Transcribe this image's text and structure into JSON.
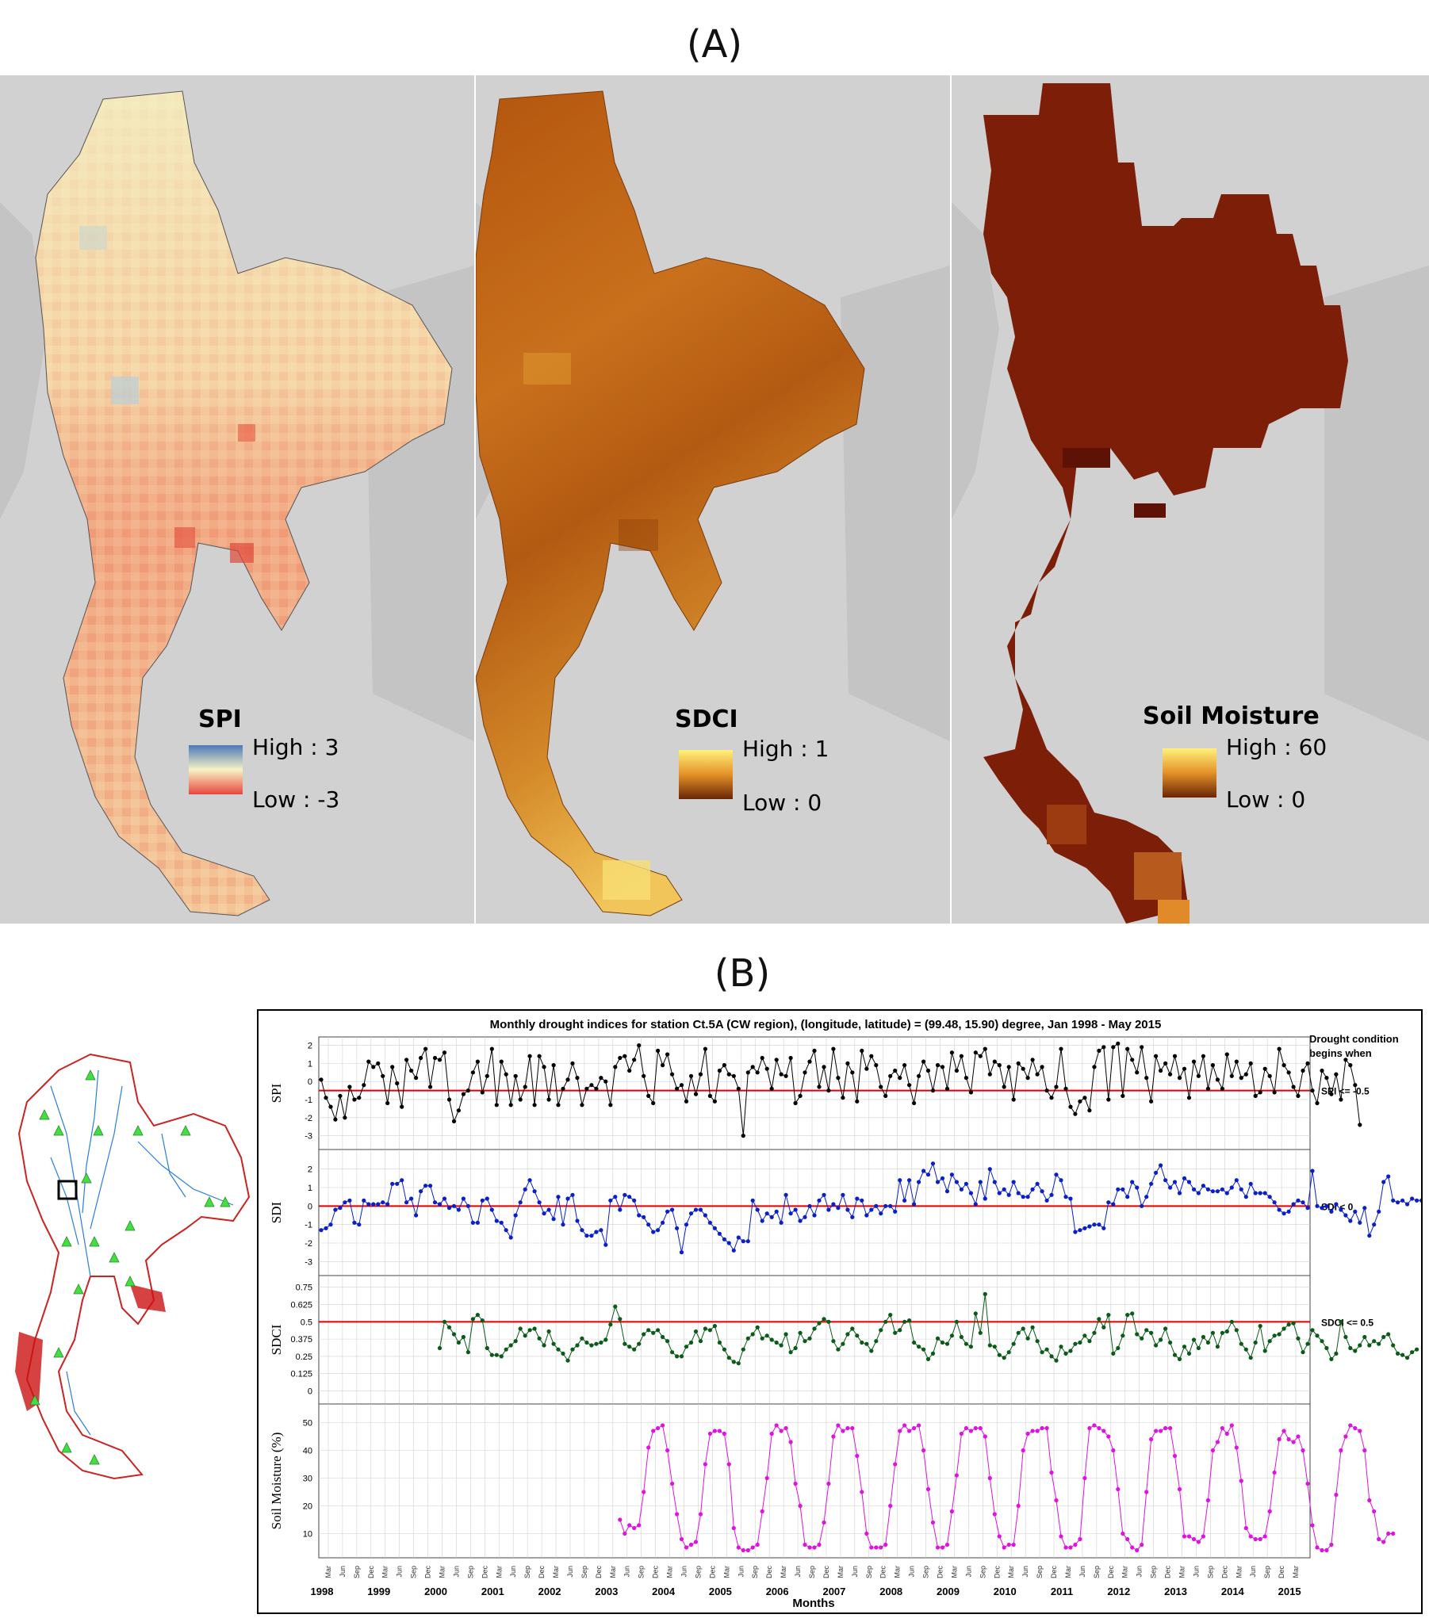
{
  "panel_a_label": "(A)",
  "panel_b_label": "(B)",
  "maps": [
    {
      "legend_title": "SPI",
      "high_label": "High : 3",
      "low_label": "Low : -3",
      "colors": {
        "high": "#4a78b8",
        "mid": "#f6f3c6",
        "low": "#e8463c"
      }
    },
    {
      "legend_title": "SDCI",
      "high_label": "High : 1",
      "low_label": "Low : 0",
      "colors": {
        "high": "#fff27a",
        "mid": "#e39128",
        "low": "#6a2505"
      }
    },
    {
      "legend_title": "Soil Moisture",
      "high_label": "High : 60",
      "low_label": "Low : 0",
      "colors": {
        "high": "#fff27a",
        "mid": "#e39128",
        "low": "#6a2505"
      }
    }
  ],
  "chart_data": {
    "type": "line",
    "title": "Monthly drought indices for station Ct.5A (CW region), (longitude, latitude) = (99.48, 15.90) degree, Jan 1998 - May 2015",
    "xlabel": "Months",
    "x_start": "1998-01",
    "x_end": "2015-05",
    "years": [
      "1998",
      "1999",
      "2000",
      "2001",
      "2002",
      "2003",
      "2004",
      "2005",
      "2006",
      "2007",
      "2008",
      "2009",
      "2010",
      "2011",
      "2012",
      "2013",
      "2014",
      "2015"
    ],
    "month_ticks": [
      "Mar",
      "Jun",
      "Sep",
      "Dec"
    ],
    "side_header": [
      "Drought condition",
      "begins when"
    ],
    "panels": [
      {
        "name": "SPI",
        "ylabel": "SPI",
        "ylim": [
          -3.5,
          2.2
        ],
        "yticks": [
          "2",
          "1",
          "0",
          "-1",
          "-2",
          "-3"
        ],
        "threshold": -0.5,
        "threshold_label": "SPI <= -0.5",
        "color": "#000000",
        "values": [
          0.1,
          -0.9,
          -1.4,
          -2.1,
          -0.8,
          -2.0,
          -0.3,
          -1.0,
          -0.9,
          -0.2,
          1.1,
          0.8,
          1.0,
          0.3,
          -1.2,
          0.8,
          -0.1,
          -1.4,
          1.2,
          0.6,
          0.2,
          1.3,
          1.8,
          -0.3,
          1.3,
          1.2,
          1.6,
          -1.0,
          -2.2,
          -1.6,
          -0.7,
          -0.5,
          0.5,
          1.1,
          -0.6,
          0.3,
          1.8,
          -1.3,
          1.1,
          0.4,
          -1.3,
          0.3,
          -1.0,
          -0.3,
          1.4,
          -1.3,
          1.4,
          0.8,
          -1.0,
          0.9,
          -1.3,
          -0.4,
          0.1,
          1.0,
          0.2,
          -1.3,
          -0.4,
          -0.2,
          -0.4,
          0.2,
          0.0,
          -1.3,
          0.8,
          1.3,
          1.4,
          0.6,
          1.2,
          2.0,
          0.3,
          -0.8,
          -1.2,
          1.7,
          0.9,
          1.5,
          0.4,
          -0.4,
          -0.2,
          -1.1,
          0.3,
          -0.7,
          0.4,
          1.8,
          -0.8,
          -1.1,
          0.6,
          0.9,
          0.4,
          0.3,
          -0.4,
          -3.0,
          0.5,
          0.8,
          0.5,
          1.3,
          0.7,
          -0.4,
          1.2,
          0.4,
          0.3,
          1.3,
          -1.2,
          -0.8,
          0.5,
          1.1,
          1.7,
          -0.3,
          0.8,
          -0.5,
          1.8,
          0.2,
          -0.9,
          1.0,
          0.5,
          -1.1,
          1.7,
          0.7,
          1.4,
          0.9,
          -0.3,
          -0.8,
          0.3,
          0.6,
          0.2,
          0.9,
          -0.2,
          -1.2,
          0.3,
          1.1,
          0.6,
          -0.5,
          0.9,
          0.8,
          -0.4,
          1.6,
          0.6,
          1.4,
          0.2,
          -0.6,
          1.6,
          1.4,
          1.8,
          0.4,
          1.1,
          0.9,
          -0.3,
          0.8,
          -1.0,
          1.0,
          0.7,
          0.2,
          1.2,
          0.4,
          0.8,
          -0.5,
          -0.9,
          -0.3,
          1.8,
          -0.4,
          -1.4,
          -1.8,
          -1.1,
          -0.9,
          -1.6,
          0.8,
          1.7,
          1.9,
          -1.0,
          1.9,
          2.1,
          -0.8,
          1.8,
          1.2,
          0.5,
          1.9,
          0.2,
          -1.1,
          1.4,
          0.6,
          1.0,
          0.4,
          1.4,
          0.2,
          0.7,
          -0.9,
          1.1,
          0.3,
          1.4,
          -0.4,
          0.9,
          0.1,
          -0.4,
          1.5,
          0.3,
          1.1,
          0.2,
          0.4,
          1.0,
          -0.8,
          -0.6,
          0.7,
          0.3,
          -0.6,
          1.8,
          0.9,
          0.5,
          -0.3,
          -0.8,
          0.6,
          1.0,
          -0.5,
          -1.2,
          0.6,
          0.2,
          -0.7,
          0.4,
          -1.0,
          1.2,
          0.9,
          -0.2,
          -2.4
        ]
      },
      {
        "name": "SDI",
        "ylabel": "SDI",
        "ylim": [
          -3.5,
          2.8
        ],
        "yticks": [
          "2",
          "1",
          "0",
          "-1",
          "-2",
          "-3"
        ],
        "threshold": 0,
        "threshold_label": "SDI < 0",
        "color": "#0a1fc8",
        "values": [
          -1.3,
          -1.2,
          -1.0,
          -0.2,
          -0.1,
          0.2,
          0.3,
          -0.9,
          -1.0,
          0.3,
          0.1,
          0.1,
          0.1,
          0.2,
          0.1,
          1.2,
          1.2,
          1.4,
          0.2,
          0.4,
          -0.5,
          0.8,
          1.1,
          1.1,
          0.2,
          0.1,
          0.4,
          -0.1,
          0.0,
          -0.2,
          0.4,
          0.0,
          -0.9,
          -0.9,
          0.3,
          0.4,
          -0.2,
          -0.8,
          -0.9,
          -1.3,
          -1.7,
          -0.5,
          0.2,
          0.9,
          1.4,
          0.8,
          0.2,
          -0.4,
          -0.2,
          -0.7,
          0.5,
          -1.0,
          0.4,
          0.6,
          -0.8,
          -1.3,
          -1.6,
          -1.6,
          -1.4,
          -1.3,
          -2.1,
          0.3,
          0.5,
          -0.2,
          0.6,
          0.5,
          0.3,
          -0.5,
          -0.6,
          -1.0,
          -1.4,
          -1.3,
          -0.9,
          -0.3,
          -0.2,
          -1.2,
          -2.5,
          -1.0,
          -0.4,
          -0.2,
          -0.2,
          -0.5,
          -0.9,
          -1.2,
          -1.5,
          -1.8,
          -2.0,
          -2.4,
          -1.7,
          -1.9,
          -1.9,
          0.3,
          -0.2,
          -0.8,
          -0.4,
          -0.6,
          -0.3,
          -0.9,
          0.6,
          -0.4,
          -0.2,
          -0.8,
          -0.6,
          0.0,
          -0.5,
          0.3,
          0.6,
          -0.2,
          0.1,
          -0.1,
          0.6,
          -0.2,
          -0.6,
          0.4,
          0.3,
          -0.5,
          -0.2,
          0.0,
          -0.4,
          0.0,
          0.0,
          -0.3,
          1.4,
          0.3,
          1.4,
          0.1,
          1.3,
          1.9,
          1.7,
          2.3,
          1.3,
          1.5,
          0.8,
          1.7,
          1.3,
          0.9,
          1.2,
          0.7,
          0.1,
          1.3,
          0.4,
          2.0,
          1.3,
          0.7,
          0.9,
          0.6,
          1.3,
          0.7,
          0.5,
          0.5,
          0.9,
          1.2,
          0.8,
          0.3,
          0.6,
          1.7,
          1.4,
          0.5,
          0.4,
          -1.4,
          -1.3,
          -1.2,
          -1.1,
          -1.0,
          -1.0,
          -1.2,
          0.2,
          0.1,
          0.9,
          0.9,
          0.5,
          1.3,
          1.0,
          0.0,
          0.5,
          1.2,
          1.8,
          2.2,
          1.4,
          1.0,
          1.3,
          0.7,
          1.5,
          1.3,
          0.9,
          0.7,
          1.1,
          0.9,
          0.8,
          0.8,
          0.9,
          0.7,
          1.0,
          1.4,
          0.9,
          0.5,
          1.2,
          0.7,
          0.7,
          0.7,
          0.5,
          0.2,
          -0.2,
          -0.4,
          -0.3,
          0.1,
          0.3,
          0.2,
          -0.1,
          1.9,
          0.0,
          -0.1,
          0.0,
          -0.3,
          0.1,
          -0.2,
          -0.5,
          -0.8,
          -0.3,
          -0.9,
          -0.1,
          -1.6,
          -1.0,
          -0.3,
          1.3,
          1.6,
          0.3,
          0.2,
          0.3,
          0.1,
          0.4,
          0.3,
          0.3,
          0.2
        ]
      },
      {
        "name": "SDCI",
        "ylabel": "SDCI",
        "ylim": [
          -0.06,
          0.8
        ],
        "yticks": [
          "0.75",
          "0.625",
          "0.5",
          "0.375",
          "0.25",
          "0.125",
          "0"
        ],
        "threshold": 0.5,
        "threshold_label": "SDCI <= 0.5",
        "color": "#0a5a18",
        "start_index": 25,
        "values": [
          0.31,
          0.5,
          0.46,
          0.41,
          0.35,
          0.39,
          0.28,
          0.52,
          0.55,
          0.51,
          0.31,
          0.26,
          0.26,
          0.25,
          0.3,
          0.33,
          0.36,
          0.45,
          0.4,
          0.44,
          0.45,
          0.38,
          0.33,
          0.43,
          0.34,
          0.3,
          0.27,
          0.22,
          0.3,
          0.33,
          0.38,
          0.35,
          0.33,
          0.34,
          0.35,
          0.37,
          0.48,
          0.61,
          0.52,
          0.34,
          0.32,
          0.3,
          0.34,
          0.41,
          0.44,
          0.42,
          0.44,
          0.39,
          0.36,
          0.28,
          0.25,
          0.25,
          0.32,
          0.35,
          0.43,
          0.36,
          0.45,
          0.44,
          0.47,
          0.35,
          0.3,
          0.24,
          0.21,
          0.2,
          0.3,
          0.38,
          0.41,
          0.46,
          0.38,
          0.4,
          0.37,
          0.35,
          0.33,
          0.41,
          0.28,
          0.31,
          0.42,
          0.36,
          0.38,
          0.45,
          0.49,
          0.52,
          0.5,
          0.36,
          0.3,
          0.34,
          0.41,
          0.45,
          0.4,
          0.35,
          0.34,
          0.29,
          0.36,
          0.44,
          0.5,
          0.55,
          0.42,
          0.44,
          0.5,
          0.51,
          0.35,
          0.32,
          0.3,
          0.23,
          0.27,
          0.38,
          0.35,
          0.34,
          0.4,
          0.5,
          0.39,
          0.34,
          0.32,
          0.56,
          0.42,
          0.7,
          0.33,
          0.32,
          0.26,
          0.24,
          0.28,
          0.34,
          0.42,
          0.45,
          0.38,
          0.46,
          0.36,
          0.28,
          0.3,
          0.25,
          0.22,
          0.32,
          0.27,
          0.29,
          0.34,
          0.35,
          0.4,
          0.36,
          0.42,
          0.52,
          0.46,
          0.55,
          0.27,
          0.31,
          0.4,
          0.55,
          0.56,
          0.41,
          0.38,
          0.44,
          0.42,
          0.33,
          0.37,
          0.45,
          0.35,
          0.26,
          0.23,
          0.32,
          0.27,
          0.37,
          0.31,
          0.39,
          0.35,
          0.42,
          0.32,
          0.42,
          0.43,
          0.5,
          0.44,
          0.34,
          0.3,
          0.24,
          0.35,
          0.47,
          0.29,
          0.36,
          0.4,
          0.41,
          0.45,
          0.48,
          0.49,
          0.38,
          0.28,
          0.34,
          0.44,
          0.4,
          0.36,
          0.31,
          0.23,
          0.27,
          0.5,
          0.39,
          0.31,
          0.29,
          0.33,
          0.39,
          0.33,
          0.36,
          0.34,
          0.39,
          0.41,
          0.33,
          0.27,
          0.26,
          0.24,
          0.28,
          0.3
        ]
      },
      {
        "name": "Soil Moisture",
        "ylabel": "Soil Moisture (%)",
        "ylim": [
          3,
          55
        ],
        "yticks": [
          "50",
          "40",
          "30",
          "20",
          "10"
        ],
        "threshold": null,
        "threshold_label": "",
        "color": "#e012e0",
        "start_index": 63,
        "values": [
          15,
          10,
          13,
          12,
          13,
          25,
          41,
          47,
          48,
          49,
          40,
          28,
          17,
          8,
          5,
          6,
          7,
          17,
          35,
          46,
          47,
          47,
          46,
          35,
          12,
          5,
          4,
          4,
          5,
          6,
          18,
          30,
          46,
          49,
          47,
          48,
          43,
          28,
          20,
          6,
          5,
          5,
          6,
          14,
          28,
          45,
          49,
          47,
          48,
          48,
          38,
          25,
          10,
          5,
          5,
          5,
          6,
          20,
          35,
          47,
          49,
          47,
          48,
          49,
          40,
          26,
          14,
          5,
          5,
          6,
          18,
          31,
          46,
          48,
          47,
          48,
          48,
          45,
          30,
          17,
          9,
          5,
          6,
          6,
          20,
          40,
          46,
          47,
          47,
          48,
          48,
          32,
          22,
          9,
          5,
          5,
          6,
          8,
          30,
          48,
          49,
          48,
          47,
          45,
          40,
          26,
          10,
          8,
          5,
          4,
          6,
          25,
          44,
          47,
          47,
          48,
          48,
          38,
          26,
          9,
          9,
          8,
          7,
          9,
          22,
          40,
          43,
          48,
          46,
          49,
          41,
          29,
          12,
          9,
          8,
          8,
          9,
          18,
          32,
          44,
          47,
          44,
          43,
          45,
          40,
          28,
          13,
          5,
          4,
          4,
          6,
          24,
          40,
          45,
          49,
          48,
          47,
          40,
          22,
          18,
          8,
          7,
          10,
          10
        ]
      }
    ]
  }
}
